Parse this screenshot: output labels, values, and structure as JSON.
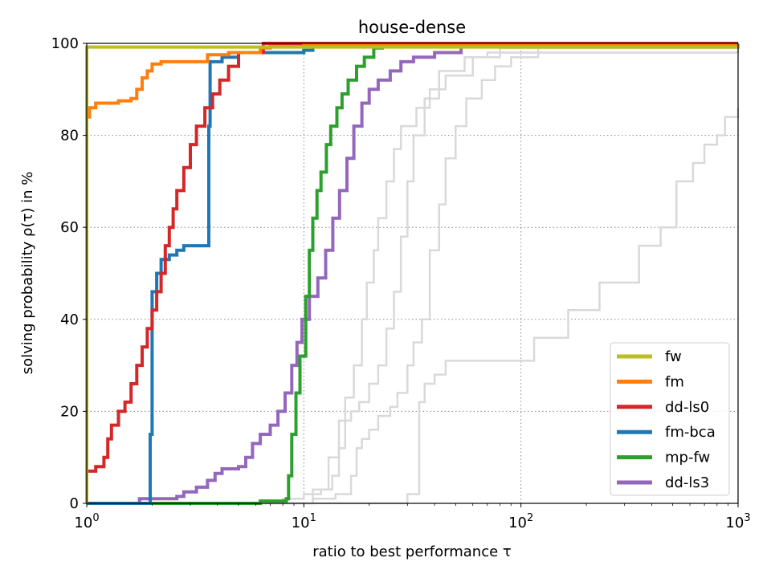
{
  "chart_data": {
    "type": "line",
    "title": "house-dense",
    "xlabel": "ratio to best performance τ",
    "ylabel": "solving probability ρ(τ) in %",
    "xscale": "log",
    "xlim": [
      1,
      1000
    ],
    "ylim": [
      0,
      100
    ],
    "x_ticks": [
      {
        "value": 1,
        "base": "10",
        "exp": "0"
      },
      {
        "value": 10,
        "base": "10",
        "exp": "1"
      },
      {
        "value": 100,
        "base": "10",
        "exp": "2"
      },
      {
        "value": 1000,
        "base": "10",
        "exp": "3"
      }
    ],
    "y_ticks": [
      0,
      20,
      40,
      60,
      80,
      100
    ],
    "grid": "dotted",
    "legend_position": "lower-right",
    "series": [
      {
        "name": "fw",
        "color": "#bcbd22",
        "in_legend": true,
        "points": [
          [
            1,
            0
          ],
          [
            1,
            99.2
          ],
          [
            1000,
            99.5
          ]
        ]
      },
      {
        "name": "fm",
        "color": "#ff7f0e",
        "in_legend": true,
        "points": [
          [
            1,
            84
          ],
          [
            1.03,
            86
          ],
          [
            1.1,
            87
          ],
          [
            1.4,
            87.5
          ],
          [
            1.6,
            88
          ],
          [
            1.7,
            90
          ],
          [
            1.8,
            92.5
          ],
          [
            1.9,
            94
          ],
          [
            2.0,
            95.5
          ],
          [
            2.2,
            96
          ],
          [
            3.2,
            96
          ],
          [
            3.6,
            97.5
          ],
          [
            4.5,
            98
          ],
          [
            6.3,
            99
          ],
          [
            7,
            99.3
          ],
          [
            10,
            99.6
          ],
          [
            1000,
            99.8
          ]
        ]
      },
      {
        "name": "dd-ls0",
        "color": "#d62728",
        "in_legend": true,
        "points": [
          [
            1,
            7
          ],
          [
            1.1,
            8
          ],
          [
            1.2,
            10
          ],
          [
            1.25,
            14
          ],
          [
            1.3,
            17
          ],
          [
            1.4,
            20
          ],
          [
            1.5,
            22
          ],
          [
            1.6,
            26
          ],
          [
            1.7,
            30
          ],
          [
            1.8,
            34
          ],
          [
            1.9,
            38
          ],
          [
            2.0,
            42
          ],
          [
            2.1,
            46
          ],
          [
            2.2,
            50
          ],
          [
            2.3,
            56
          ],
          [
            2.4,
            60
          ],
          [
            2.5,
            64
          ],
          [
            2.6,
            68
          ],
          [
            2.8,
            73
          ],
          [
            3.0,
            78
          ],
          [
            3.2,
            82
          ],
          [
            3.5,
            86
          ],
          [
            3.8,
            89
          ],
          [
            4.1,
            92
          ],
          [
            4.5,
            95
          ],
          [
            5.0,
            98
          ],
          [
            6.5,
            100
          ],
          [
            1000,
            100
          ]
        ]
      },
      {
        "name": "fm-bca",
        "color": "#1f77b4",
        "in_legend": true,
        "points": [
          [
            1,
            0
          ],
          [
            1.95,
            0
          ],
          [
            1.96,
            15
          ],
          [
            2.0,
            46
          ],
          [
            2.1,
            50
          ],
          [
            2.2,
            53
          ],
          [
            2.4,
            54
          ],
          [
            2.6,
            55
          ],
          [
            2.8,
            56
          ],
          [
            3.6,
            56
          ],
          [
            3.65,
            82
          ],
          [
            3.7,
            96
          ],
          [
            4.2,
            97
          ],
          [
            5.0,
            98
          ],
          [
            10,
            98.5
          ],
          [
            11,
            99.5
          ],
          [
            14,
            99.5
          ],
          [
            1000,
            99.5
          ]
        ]
      },
      {
        "name": "mp-fw",
        "color": "#2ca02c",
        "in_legend": true,
        "points": [
          [
            1,
            0
          ],
          [
            6.2,
            0
          ],
          [
            6.3,
            0.5
          ],
          [
            8.3,
            1
          ],
          [
            8.5,
            6
          ],
          [
            8.8,
            15
          ],
          [
            9.2,
            24
          ],
          [
            9.6,
            32
          ],
          [
            10.2,
            45
          ],
          [
            10.6,
            55
          ],
          [
            11,
            62
          ],
          [
            11.5,
            68
          ],
          [
            12,
            72
          ],
          [
            12.7,
            78
          ],
          [
            13.3,
            82
          ],
          [
            14.2,
            86
          ],
          [
            15,
            89
          ],
          [
            16,
            92
          ],
          [
            17.5,
            95
          ],
          [
            19,
            97
          ],
          [
            21,
            99
          ],
          [
            23,
            99.5
          ],
          [
            1000,
            99.7
          ]
        ]
      },
      {
        "name": "dd-ls3",
        "color": "#9467bd",
        "in_legend": true,
        "points": [
          [
            1,
            0
          ],
          [
            1.7,
            0
          ],
          [
            1.75,
            1
          ],
          [
            2.6,
            1.5
          ],
          [
            2.8,
            2.5
          ],
          [
            3.2,
            3.5
          ],
          [
            3.6,
            5
          ],
          [
            3.9,
            6.5
          ],
          [
            4.2,
            7.5
          ],
          [
            5.0,
            8
          ],
          [
            5.4,
            10
          ],
          [
            5.8,
            13
          ],
          [
            6.3,
            15
          ],
          [
            7,
            17
          ],
          [
            7.6,
            20
          ],
          [
            8.2,
            24
          ],
          [
            8.8,
            30
          ],
          [
            9.3,
            35
          ],
          [
            9.8,
            40
          ],
          [
            10.6,
            45
          ],
          [
            11.6,
            49
          ],
          [
            12.6,
            55
          ],
          [
            13.6,
            62
          ],
          [
            14.6,
            68
          ],
          [
            15.8,
            75
          ],
          [
            17,
            82
          ],
          [
            18.5,
            87
          ],
          [
            20,
            90
          ],
          [
            22,
            92
          ],
          [
            25,
            94
          ],
          [
            28,
            96
          ],
          [
            32,
            97
          ],
          [
            40,
            98
          ],
          [
            53,
            100
          ],
          [
            1000,
            100
          ]
        ]
      },
      {
        "name": "",
        "color": "#d9d9d9",
        "in_legend": false,
        "points": [
          [
            1,
            0
          ],
          [
            7.5,
            0
          ],
          [
            8,
            1
          ],
          [
            10,
            2
          ],
          [
            12,
            3
          ],
          [
            13.5,
            6
          ],
          [
            14.5,
            12
          ],
          [
            15.5,
            18
          ],
          [
            16.5,
            20
          ],
          [
            18,
            22
          ],
          [
            20,
            26
          ],
          [
            22,
            30
          ],
          [
            24,
            38
          ],
          [
            26,
            46
          ],
          [
            28,
            58
          ],
          [
            30,
            70
          ],
          [
            32,
            80
          ],
          [
            36,
            88
          ],
          [
            42,
            94
          ],
          [
            55,
            97
          ],
          [
            80,
            99
          ],
          [
            200,
            99.5
          ],
          [
            1000,
            99.5
          ]
        ]
      },
      {
        "name": "",
        "color": "#d9d9d9",
        "in_legend": false,
        "points": [
          [
            1,
            0
          ],
          [
            8,
            0
          ],
          [
            11,
            1
          ],
          [
            14,
            2
          ],
          [
            16.5,
            6
          ],
          [
            17.5,
            12
          ],
          [
            18.5,
            14
          ],
          [
            20,
            16
          ],
          [
            22,
            19
          ],
          [
            25,
            21
          ],
          [
            27,
            24
          ],
          [
            30,
            30
          ],
          [
            32,
            35
          ],
          [
            35,
            40
          ],
          [
            38,
            55
          ],
          [
            42,
            65
          ],
          [
            45,
            75
          ],
          [
            50,
            82
          ],
          [
            56,
            88
          ],
          [
            66,
            92
          ],
          [
            76,
            95
          ],
          [
            90,
            97
          ],
          [
            120,
            99
          ],
          [
            1000,
            99.8
          ]
        ]
      },
      {
        "name": "",
        "color": "#d9d9d9",
        "in_legend": false,
        "points": [
          [
            1,
            0
          ],
          [
            10,
            0
          ],
          [
            11,
            3
          ],
          [
            13,
            10
          ],
          [
            14.5,
            18
          ],
          [
            15.5,
            23
          ],
          [
            17,
            30
          ],
          [
            18.5,
            40
          ],
          [
            19.5,
            48
          ],
          [
            21,
            55
          ],
          [
            22,
            62
          ],
          [
            24,
            70
          ],
          [
            26,
            77
          ],
          [
            28,
            82
          ],
          [
            33,
            86
          ],
          [
            38,
            90
          ],
          [
            45,
            93
          ],
          [
            60,
            97
          ],
          [
            70,
            98
          ],
          [
            1000,
            99
          ]
        ]
      },
      {
        "name": "",
        "color": "#d9d9d9",
        "in_legend": false,
        "points": [
          [
            1,
            0
          ],
          [
            25,
            0
          ],
          [
            30,
            2
          ],
          [
            33,
            2
          ],
          [
            34,
            22
          ],
          [
            36,
            26
          ],
          [
            40,
            28
          ],
          [
            45,
            31
          ],
          [
            110,
            31
          ],
          [
            115,
            36
          ],
          [
            160,
            36
          ],
          [
            165,
            42
          ],
          [
            220,
            42
          ],
          [
            230,
            48
          ],
          [
            320,
            48
          ],
          [
            350,
            56
          ],
          [
            440,
            60
          ],
          [
            520,
            70
          ],
          [
            620,
            74
          ],
          [
            700,
            78
          ],
          [
            800,
            80
          ],
          [
            870,
            84
          ],
          [
            1000,
            86
          ]
        ]
      }
    ]
  }
}
